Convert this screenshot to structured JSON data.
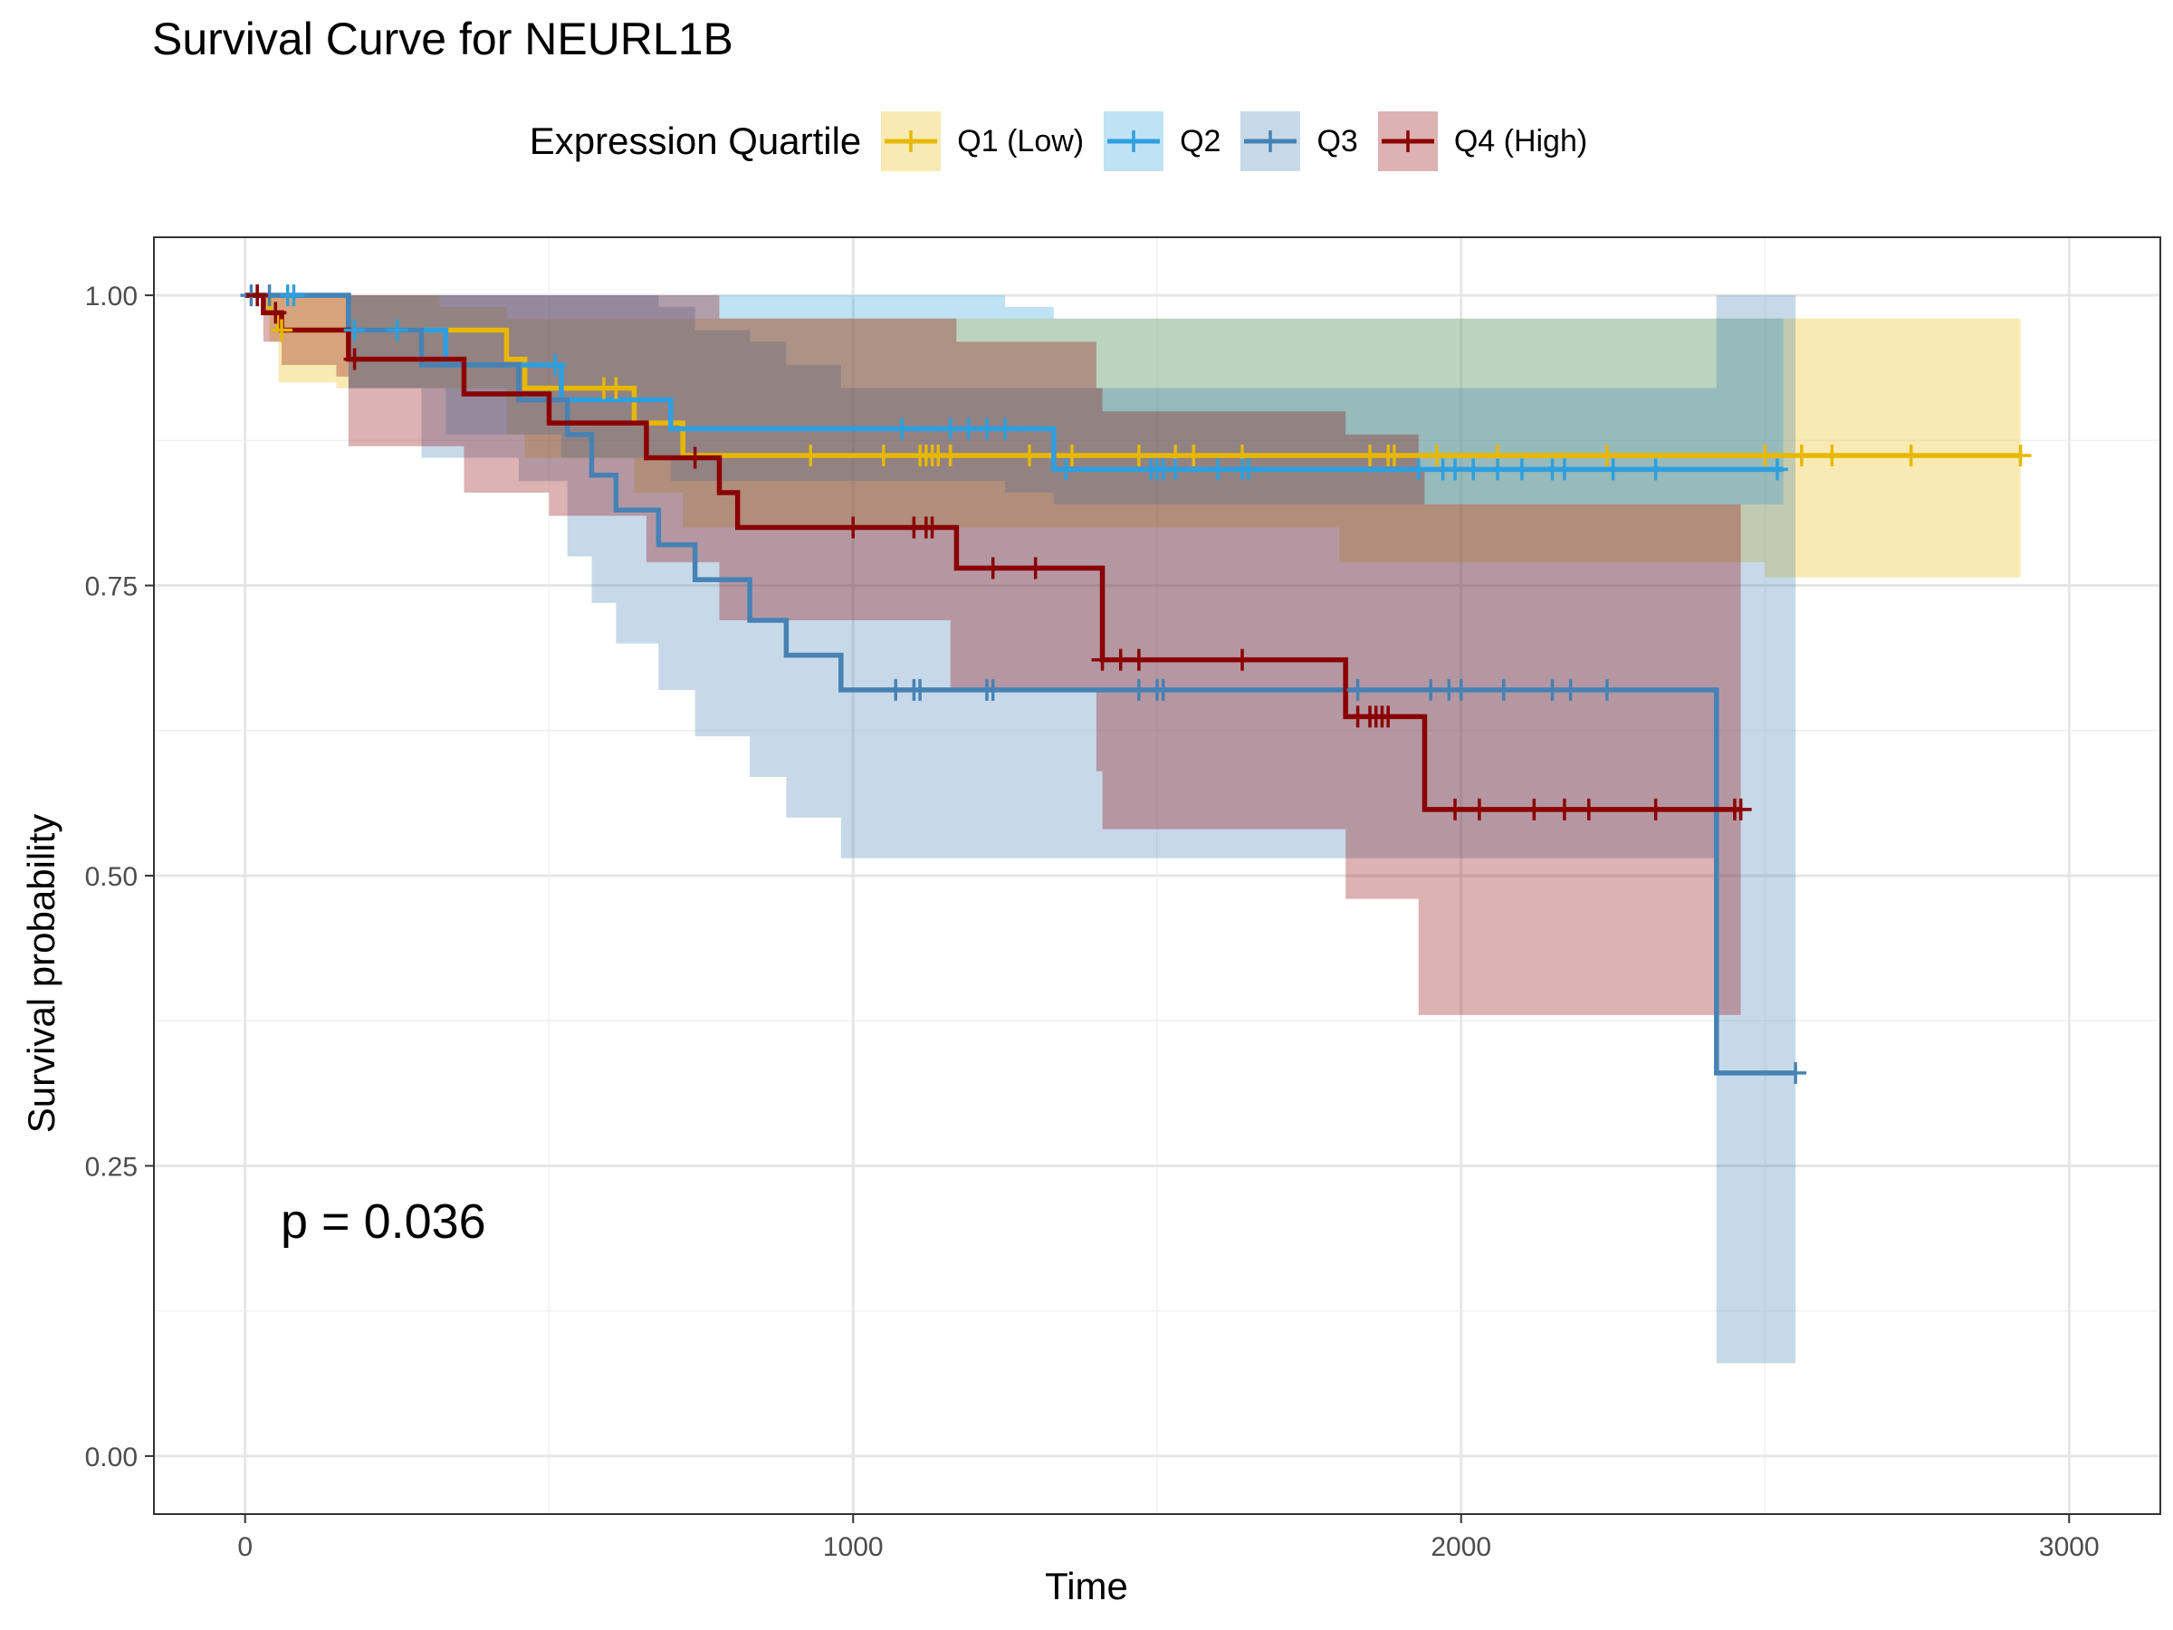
{
  "chart_data": {
    "type": "line",
    "subtype": "kaplan-meier",
    "title": "Survival Curve for NEURL1B",
    "xlabel": "Time",
    "ylabel": "Survival probability",
    "xlim": [
      -150,
      3150
    ],
    "ylim": [
      -0.05,
      1.05
    ],
    "x_ticks": [
      0,
      1000,
      2000,
      3000
    ],
    "y_ticks": [
      0.0,
      0.25,
      0.5,
      0.75,
      1.0
    ],
    "x_tick_labels": [
      "0",
      "1000",
      "2000",
      "3000"
    ],
    "y_tick_labels": [
      "0.00",
      "0.25",
      "0.50",
      "0.75",
      "1.00"
    ],
    "grid": true,
    "legend_title": "Expression Quartile",
    "legend_position": "top",
    "annotation": "p = 0.036",
    "series": [
      {
        "name": "Q1 (Low)",
        "color": "#E7B800",
        "steps": [
          [
            0,
            1.0
          ],
          [
            40,
            0.985
          ],
          [
            55,
            0.97
          ],
          [
            150,
            0.97
          ],
          [
            320,
            0.97
          ],
          [
            430,
            0.945
          ],
          [
            460,
            0.92
          ],
          [
            640,
            0.89
          ],
          [
            720,
            0.862
          ],
          [
            2920,
            0.862
          ]
        ],
        "ci": [
          [
            0,
            1.0,
            1.0
          ],
          [
            40,
            1.0,
            0.96
          ],
          [
            55,
            1.0,
            0.925
          ],
          [
            150,
            1.0,
            0.92
          ],
          [
            320,
            0.99,
            0.92
          ],
          [
            430,
            0.98,
            0.88
          ],
          [
            460,
            0.98,
            0.86
          ],
          [
            640,
            0.98,
            0.83
          ],
          [
            720,
            0.98,
            0.8
          ],
          [
            1000,
            0.98,
            0.8
          ],
          [
            1800,
            0.98,
            0.77
          ],
          [
            2500,
            0.98,
            0.757
          ],
          [
            2920,
            0.98,
            0.757
          ]
        ],
        "censor": [
          60,
          590,
          610,
          930,
          1050,
          1110,
          1120,
          1130,
          1140,
          1160,
          1290,
          1360,
          1470,
          1530,
          1560,
          1640,
          1850,
          1880,
          1890,
          1960,
          2060,
          2240,
          2500,
          2560,
          2610,
          2740,
          2920
        ]
      },
      {
        "name": "Q2",
        "color": "#2E9FDF",
        "steps": [
          [
            0,
            1.0
          ],
          [
            170,
            0.97
          ],
          [
            330,
            0.94
          ],
          [
            520,
            0.91
          ],
          [
            700,
            0.885
          ],
          [
            1050,
            0.885
          ],
          [
            1250,
            0.885
          ],
          [
            1330,
            0.85
          ],
          [
            2530,
            0.85
          ]
        ],
        "ci": [
          [
            0,
            1.0,
            1.0
          ],
          [
            170,
            1.0,
            0.92
          ],
          [
            330,
            1.0,
            0.88
          ],
          [
            520,
            1.0,
            0.86
          ],
          [
            700,
            1.0,
            0.84
          ],
          [
            1050,
            1.0,
            0.84
          ],
          [
            1250,
            0.99,
            0.83
          ],
          [
            1330,
            0.98,
            0.82
          ],
          [
            1400,
            0.98,
            0.82
          ],
          [
            1500,
            0.98,
            0.82
          ],
          [
            1800,
            0.98,
            0.82
          ],
          [
            2530,
            0.98,
            0.74
          ]
        ],
        "censor": [
          20,
          70,
          80,
          180,
          250,
          510,
          1080,
          1160,
          1190,
          1220,
          1250,
          1350,
          1490,
          1500,
          1510,
          1530,
          1600,
          1640,
          1650,
          1930,
          1970,
          1990,
          2020,
          2060,
          2100,
          2150,
          2170,
          2250,
          2320,
          2520
        ]
      },
      {
        "name": "Q3",
        "color": "#4682B4",
        "steps": [
          [
            0,
            1.0
          ],
          [
            170,
            0.97
          ],
          [
            290,
            0.94
          ],
          [
            450,
            0.91
          ],
          [
            530,
            0.88
          ],
          [
            570,
            0.845
          ],
          [
            610,
            0.815
          ],
          [
            680,
            0.785
          ],
          [
            740,
            0.755
          ],
          [
            830,
            0.72
          ],
          [
            890,
            0.69
          ],
          [
            980,
            0.66
          ],
          [
            2420,
            0.66
          ],
          [
            2420,
            0.33
          ],
          [
            2550,
            0.33
          ]
        ],
        "ci": [
          [
            0,
            1.0,
            1.0
          ],
          [
            170,
            1.0,
            0.92
          ],
          [
            290,
            1.0,
            0.86
          ],
          [
            450,
            1.0,
            0.84
          ],
          [
            530,
            1.0,
            0.775
          ],
          [
            570,
            1.0,
            0.735
          ],
          [
            610,
            1.0,
            0.7
          ],
          [
            680,
            0.99,
            0.66
          ],
          [
            740,
            0.97,
            0.62
          ],
          [
            830,
            0.96,
            0.585
          ],
          [
            890,
            0.94,
            0.55
          ],
          [
            980,
            0.92,
            0.515
          ],
          [
            2420,
            0.92,
            0.515
          ],
          [
            2420,
            1.0,
            0.08
          ],
          [
            2550,
            1.0,
            0.08
          ]
        ],
        "censor": [
          10,
          40,
          1070,
          1100,
          1110,
          1220,
          1230,
          1470,
          1500,
          1510,
          1830,
          1950,
          1980,
          2000,
          2070,
          2150,
          2180,
          2240,
          2550
        ]
      },
      {
        "name": "Q4 (High)",
        "color": "#8B0000",
        "steps": [
          [
            0,
            1.0
          ],
          [
            30,
            0.985
          ],
          [
            60,
            0.97
          ],
          [
            150,
            0.97
          ],
          [
            170,
            0.945
          ],
          [
            290,
            0.945
          ],
          [
            360,
            0.915
          ],
          [
            500,
            0.89
          ],
          [
            660,
            0.86
          ],
          [
            780,
            0.83
          ],
          [
            810,
            0.8
          ],
          [
            1160,
            0.8
          ],
          [
            1170,
            0.765
          ],
          [
            1400,
            0.765
          ],
          [
            1410,
            0.73
          ],
          [
            1410,
            0.686
          ],
          [
            1810,
            0.686
          ],
          [
            1810,
            0.637
          ],
          [
            1930,
            0.637
          ],
          [
            1940,
            0.557
          ],
          [
            2460,
            0.557
          ]
        ],
        "ci": [
          [
            0,
            1.0,
            1.0
          ],
          [
            30,
            1.0,
            0.96
          ],
          [
            60,
            1.0,
            0.94
          ],
          [
            150,
            1.0,
            0.93
          ],
          [
            170,
            1.0,
            0.87
          ],
          [
            290,
            1.0,
            0.87
          ],
          [
            360,
            1.0,
            0.83
          ],
          [
            500,
            1.0,
            0.81
          ],
          [
            660,
            1.0,
            0.77
          ],
          [
            780,
            0.98,
            0.72
          ],
          [
            810,
            0.98,
            0.72
          ],
          [
            1160,
            0.98,
            0.66
          ],
          [
            1170,
            0.96,
            0.66
          ],
          [
            1400,
            0.92,
            0.59
          ],
          [
            1410,
            0.9,
            0.54
          ],
          [
            1810,
            0.88,
            0.48
          ],
          [
            1930,
            0.85,
            0.38
          ],
          [
            1940,
            0.82,
            0.38
          ],
          [
            2460,
            0.82,
            0.38
          ]
        ],
        "censor": [
          20,
          50,
          180,
          740,
          1000,
          1100,
          1120,
          1130,
          1230,
          1300,
          1410,
          1440,
          1470,
          1640,
          1830,
          1850,
          1860,
          1870,
          1880,
          1990,
          2030,
          2120,
          2170,
          2210,
          2320,
          2450,
          2460
        ]
      }
    ]
  }
}
